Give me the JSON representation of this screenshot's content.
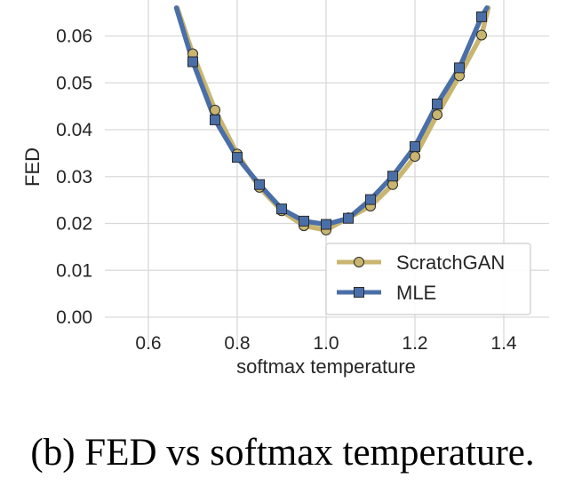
{
  "caption": "(b) FED vs softmax temperature.",
  "chart_data": {
    "type": "line",
    "title": "",
    "xlabel": "softmax temperature",
    "ylabel": "FED",
    "xlim": [
      0.5,
      1.5
    ],
    "ylim": [
      0.0,
      0.065
    ],
    "xticks": [
      "0.6",
      "0.8",
      "1.0",
      "1.2",
      "1.4"
    ],
    "xtick_values": [
      0.6,
      0.8,
      1.0,
      1.2,
      1.4
    ],
    "yticks": [
      "0.00",
      "0.01",
      "0.02",
      "0.03",
      "0.04",
      "0.05",
      "0.06"
    ],
    "ytick_values": [
      0.0,
      0.01,
      0.02,
      0.03,
      0.04,
      0.05,
      0.06
    ],
    "grid": true,
    "legend_position": "lower-right",
    "series": [
      {
        "name": "ScratchGAN",
        "color": "#c9b56f",
        "marker": "circle",
        "x": [
          0.7,
          0.75,
          0.8,
          0.85,
          0.9,
          0.95,
          1.0,
          1.05,
          1.1,
          1.15,
          1.2,
          1.25,
          1.3,
          1.35
        ],
        "y": [
          0.0562,
          0.0442,
          0.0348,
          0.0277,
          0.0227,
          0.0195,
          0.0186,
          0.0212,
          0.0237,
          0.0283,
          0.0343,
          0.0432,
          0.0515,
          0.0602
        ],
        "curve_start": [
          0.665,
          0.066
        ],
        "curve_end": [
          1.365,
          0.066
        ]
      },
      {
        "name": "MLE",
        "color": "#4a6fa8",
        "marker": "square",
        "x": [
          0.7,
          0.75,
          0.8,
          0.85,
          0.9,
          0.95,
          1.0,
          1.05,
          1.1,
          1.15,
          1.2,
          1.25,
          1.3,
          1.35
        ],
        "y": [
          0.0545,
          0.0421,
          0.0341,
          0.0283,
          0.0231,
          0.0205,
          0.0198,
          0.0211,
          0.0251,
          0.0301,
          0.0364,
          0.0455,
          0.0532,
          0.0641
        ],
        "curve_start": [
          0.663,
          0.066
        ],
        "curve_end": [
          1.362,
          0.066
        ]
      }
    ]
  }
}
